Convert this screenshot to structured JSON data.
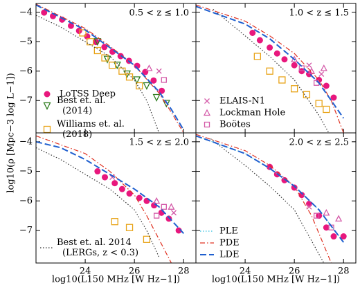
{
  "chart_data": [
    {
      "type": "scatter",
      "annotation": "0.5 < z ≤ 1.0",
      "legend": "lower left",
      "xlim": [
        22,
        28.5
      ],
      "ylim": [
        -8.1,
        -3.7
      ],
      "xticks": [
        24,
        26,
        28
      ],
      "yticks": [
        {
          "value": -4,
          "label": "−4"
        },
        {
          "value": -5,
          "label": "−5"
        },
        {
          "value": -6,
          "label": "−6"
        },
        {
          "value": -7,
          "label": "−7"
        }
      ],
      "show_xtick_labels": false,
      "show_ytick_labels": true,
      "series": [
        {
          "name": "LoTSS Deep",
          "color": "#e8177d",
          "marker": "circle",
          "x": [
            22.33,
            22.69,
            23.06,
            23.42,
            23.75,
            24.08,
            24.44,
            24.78,
            25.11,
            25.44,
            25.78,
            26.11,
            26.44,
            26.78,
            27.11
          ],
          "values": [
            -4.01,
            -4.13,
            -4.25,
            -4.46,
            -4.63,
            -4.82,
            -5.01,
            -5.18,
            -5.34,
            -5.49,
            -5.65,
            -5.82,
            -6.03,
            -6.32,
            -6.67
          ]
        },
        {
          "name": "Best et. al. (2014)",
          "color": "#2e7d1f",
          "marker": "triangle-down",
          "x": [
            24.5,
            24.9,
            25.3,
            25.7,
            26.1,
            26.5,
            26.9,
            27.3
          ],
          "values": [
            -5.0,
            -5.6,
            -5.8,
            -6.1,
            -6.3,
            -6.5,
            -6.9,
            -7.1
          ]
        },
        {
          "name": "Williams et. al. (2018)",
          "color": "#e8a317",
          "marker": "square",
          "x": [
            23.9,
            24.2,
            24.5,
            24.8,
            25.1,
            25.5,
            25.8,
            26.2
          ],
          "values": [
            -4.7,
            -5.0,
            -5.3,
            -5.55,
            -5.8,
            -6.0,
            -6.2,
            -6.5
          ]
        },
        {
          "color": "#d45aa8",
          "marker": "x",
          "x": [
            27.0
          ],
          "values": [
            -6.0
          ]
        },
        {
          "color": "#d45aa8",
          "marker": "triangle",
          "x": [
            26.6
          ],
          "values": [
            -5.9
          ]
        },
        {
          "color": "#d45aa8",
          "marker": "square-open",
          "x": [
            27.2
          ],
          "values": [
            -6.3
          ]
        },
        {
          "color": "#333333",
          "dash": "dotted",
          "x": [
            22,
            23,
            24,
            25,
            26,
            26.5,
            27
          ],
          "values": [
            -4.1,
            -4.5,
            -5.0,
            -5.5,
            -6.3,
            -7.0,
            -8.1
          ]
        },
        {
          "color": "#e03020",
          "dash": "dashdot",
          "x": [
            22,
            24,
            25,
            26,
            27,
            27.5,
            28
          ],
          "values": [
            -3.72,
            -4.55,
            -5.15,
            -5.8,
            -6.75,
            -7.4,
            -8.1
          ]
        },
        {
          "color": "#1f5fcf",
          "dash": "dashed",
          "x": [
            22,
            24,
            25,
            26,
            27,
            27.5,
            28
          ],
          "values": [
            -3.75,
            -4.6,
            -5.2,
            -5.8,
            -6.7,
            -7.3,
            -8.0
          ]
        }
      ]
    },
    {
      "type": "scatter",
      "annotation": "1.0 < z ≤ 1.5",
      "legend": "lower left",
      "xlim": [
        22,
        28.5
      ],
      "ylim": [
        -8.1,
        -3.7
      ],
      "xticks": [
        24,
        26,
        28
      ],
      "yticks": [
        -4,
        -5,
        -6,
        -7
      ],
      "show_xtick_labels": false,
      "show_ytick_labels": false,
      "series": [
        {
          "color": "#e8177d",
          "marker": "circle",
          "x": [
            24.3,
            24.6,
            25.0,
            25.3,
            25.6,
            26.0,
            26.3,
            26.6,
            27.0,
            27.3,
            27.6
          ],
          "values": [
            -4.7,
            -4.95,
            -5.2,
            -5.4,
            -5.6,
            -5.8,
            -6.0,
            -6.1,
            -6.3,
            -6.5,
            -6.9
          ]
        },
        {
          "color": "#e8a317",
          "marker": "square",
          "x": [
            24.5,
            25.0,
            25.5,
            26.0,
            26.5,
            27.0,
            27.3
          ],
          "values": [
            -5.5,
            -6.0,
            -6.3,
            -6.6,
            -6.8,
            -7.1,
            -7.3
          ]
        },
        {
          "name": "ELAIS-N1",
          "color": "#d45aa8",
          "marker": "x",
          "x": [
            26.6,
            27.1
          ],
          "values": [
            -5.8,
            -6.1
          ]
        },
        {
          "name": "Lockman Hole",
          "color": "#d45aa8",
          "marker": "triangle",
          "x": [
            26.0,
            26.7,
            27.2
          ],
          "values": [
            -5.6,
            -6.0,
            -5.9
          ]
        },
        {
          "name": "Boötes",
          "color": "#d45aa8",
          "marker": "square-open",
          "x": [
            26.3,
            26.9
          ],
          "values": [
            -5.9,
            -6.4
          ]
        },
        {
          "color": "#333333",
          "dash": "dotted",
          "x": [
            22.7,
            24,
            25,
            26,
            27,
            27.4
          ],
          "values": [
            -3.9,
            -4.8,
            -5.5,
            -6.3,
            -7.5,
            -8.1
          ]
        },
        {
          "color": "#e03020",
          "dash": "dashdot",
          "x": [
            22,
            24,
            25,
            26,
            27,
            27.5,
            28
          ],
          "values": [
            -3.75,
            -4.3,
            -4.8,
            -5.4,
            -6.3,
            -7.0,
            -8.1
          ]
        },
        {
          "color": "#1f5fcf",
          "dash": "dashed",
          "x": [
            22,
            24,
            25,
            26,
            27,
            28
          ],
          "values": [
            -3.8,
            -4.4,
            -4.9,
            -5.6,
            -6.4,
            -7.6
          ]
        }
      ]
    },
    {
      "type": "scatter",
      "annotation": "1.5 < z ≤ 2.0",
      "legend": "lower left",
      "x_label": "log10(L150 MHz [W Hz−1])",
      "y_label": "log10(ρ [Mpc−3 log L−1])",
      "xlim": [
        22,
        28.5
      ],
      "ylim": [
        -8.1,
        -3.7
      ],
      "xticks": [
        24,
        26,
        28
      ],
      "yticks": [
        {
          "value": -4,
          "label": "−4"
        },
        {
          "value": -5,
          "label": "−5"
        },
        {
          "value": -6,
          "label": "−6"
        },
        {
          "value": -7,
          "label": "−7"
        }
      ],
      "show_xtick_labels": true,
      "show_ytick_labels": true,
      "series": [
        {
          "color": "#e8177d",
          "marker": "circle",
          "x": [
            24.5,
            24.8,
            25.2,
            25.5,
            25.8,
            26.2,
            26.5,
            26.8,
            27.1,
            27.4,
            27.8
          ],
          "values": [
            -5.0,
            -5.2,
            -5.4,
            -5.6,
            -5.75,
            -5.9,
            -6.0,
            -6.15,
            -6.4,
            -6.6,
            -7.0
          ]
        },
        {
          "color": "#e8a317",
          "marker": "square",
          "x": [
            25.2,
            25.8,
            26.5
          ],
          "values": [
            -6.7,
            -6.9,
            -7.3
          ]
        },
        {
          "color": "#d45aa8",
          "marker": "x",
          "x": [
            25.1,
            27.6
          ],
          "values": [
            -5.2,
            -6.4
          ]
        },
        {
          "color": "#d45aa8",
          "marker": "triangle",
          "x": [
            26.9,
            27.5
          ],
          "values": [
            -6.0,
            -6.2
          ]
        },
        {
          "color": "#d45aa8",
          "marker": "square-open",
          "x": [
            26.9,
            27.2
          ],
          "values": [
            -6.5,
            -6.2
          ]
        },
        {
          "name": "Best et. al. 2014 (LERGs, z < 0.3)",
          "color": "#333333",
          "dash": "dotted",
          "x": [
            22,
            23,
            24,
            25,
            26,
            26.5,
            27
          ],
          "values": [
            -4.2,
            -4.6,
            -5.1,
            -5.6,
            -6.3,
            -7.0,
            -7.9
          ]
        },
        {
          "color": "#e03020",
          "dash": "dashdot",
          "x": [
            22,
            24,
            25,
            26,
            26.5,
            27,
            27.5
          ],
          "values": [
            -3.8,
            -4.4,
            -5.0,
            -5.8,
            -6.5,
            -7.3,
            -8.1
          ]
        },
        {
          "color": "#1f5fcf",
          "dash": "dashed",
          "x": [
            22,
            23,
            24,
            25,
            26,
            27,
            28
          ],
          "values": [
            -4.0,
            -4.2,
            -4.6,
            -5.1,
            -5.6,
            -6.2,
            -7.1
          ]
        }
      ]
    },
    {
      "type": "scatter",
      "annotation": "2.0 < z ≤ 2.5",
      "legend": "lower left",
      "x_label": "log10(L150 MHz [W Hz−1])",
      "xlim": [
        22,
        28.5
      ],
      "ylim": [
        -8.1,
        -3.7
      ],
      "xticks": [
        24,
        26,
        28
      ],
      "yticks": [
        -4,
        -5,
        -6,
        -7
      ],
      "show_xtick_labels": true,
      "show_ytick_labels": false,
      "series": [
        {
          "color": "#e8177d",
          "marker": "circle",
          "x": [
            25.0,
            25.3,
            25.6,
            26.0,
            26.3,
            26.6,
            27.0,
            27.3,
            27.6,
            28.0
          ],
          "values": [
            -4.85,
            -5.1,
            -5.3,
            -5.55,
            -5.8,
            -6.1,
            -6.5,
            -6.9,
            -7.2,
            -7.2
          ]
        },
        {
          "color": "#d45aa8",
          "marker": "x",
          "x": [
            26.6
          ],
          "values": [
            -6.2
          ]
        },
        {
          "color": "#d45aa8",
          "marker": "triangle",
          "x": [
            27.3,
            27.8
          ],
          "values": [
            -6.4,
            -6.6
          ]
        },
        {
          "color": "#d45aa8",
          "marker": "square-open",
          "x": [
            26.9,
            27.5
          ],
          "values": [
            -6.5,
            -6.9
          ]
        },
        {
          "color": "#333333",
          "dash": "dotted",
          "x": [
            22.6,
            24,
            25,
            26,
            26.8,
            27.2
          ],
          "values": [
            -3.9,
            -4.8,
            -5.5,
            -6.3,
            -7.5,
            -8.1
          ]
        },
        {
          "name": "PLE",
          "color": "#30c0e0",
          "dash": "dotted",
          "x": [
            22,
            24,
            25,
            26,
            27,
            28
          ],
          "values": [
            -3.8,
            -4.4,
            -4.9,
            -5.5,
            -6.3,
            -7.4
          ]
        },
        {
          "name": "PDE",
          "color": "#e03020",
          "dash": "dashdot",
          "x": [
            22,
            24,
            25,
            26,
            26.7,
            27.2,
            27.5
          ],
          "values": [
            -3.75,
            -4.3,
            -4.8,
            -5.5,
            -6.5,
            -7.5,
            -8.1
          ]
        },
        {
          "name": "LDE",
          "color": "#1f5fcf",
          "dash": "dashed",
          "x": [
            22,
            24,
            25,
            26,
            27,
            28
          ],
          "values": [
            -3.8,
            -4.4,
            -4.9,
            -5.5,
            -6.3,
            -7.4
          ]
        }
      ]
    }
  ]
}
